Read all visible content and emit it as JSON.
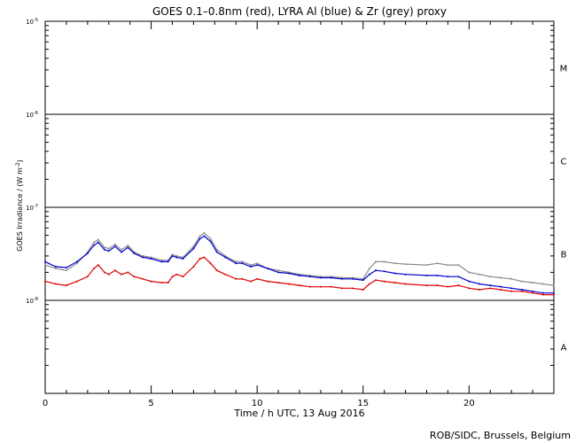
{
  "chart_data": {
    "type": "line",
    "title": "GOES 0.1–0.8nm (red), LYRA Al (blue) & Zr (grey) proxy",
    "xlabel": "Time / h UTC, 13 Aug 2016",
    "ylabel": "GOES Irradiance / (W m",
    "ylabel_sup": "-2",
    "ylabel_end": ")",
    "credit": "ROB/SIDC, Brussels, Belgium",
    "x_range": [
      0,
      24
    ],
    "x_ticks": [
      "0",
      "5",
      "10",
      "15",
      "20"
    ],
    "y_scale": "log",
    "y_range": [
      1e-08,
      0.0001
    ],
    "y_ticks": [
      {
        "base": "10",
        "exp": "-8"
      },
      {
        "base": "10",
        "exp": "-7"
      },
      {
        "base": "10",
        "exp": "-6"
      },
      {
        "base": "10",
        "exp": "-5"
      },
      {
        "base": "10",
        "exp": "-4"
      }
    ],
    "flare_classes": [
      "A",
      "B",
      "C",
      "M"
    ],
    "class_lines": [
      1e-07,
      1e-06,
      1e-05
    ],
    "colors": {
      "goes": "#e00000",
      "lyra_al": "#0000cc",
      "lyra_zr": "#8c8c8c"
    },
    "series": [
      {
        "name": "GOES 0.1–0.8nm",
        "color": "#e00000",
        "x": [
          0,
          0.5,
          1,
          1.5,
          2,
          2.3,
          2.5,
          2.8,
          3,
          3.3,
          3.6,
          3.9,
          4.2,
          4.6,
          5,
          5.5,
          5.8,
          6,
          6.2,
          6.5,
          7,
          7.3,
          7.5,
          7.8,
          8.1,
          8.5,
          9,
          9.3,
          9.7,
          10,
          10.5,
          11,
          11.5,
          12,
          12.5,
          13,
          13.5,
          14,
          14.5,
          15,
          15.3,
          15.6,
          16,
          16.5,
          17,
          18,
          18.5,
          19,
          19.5,
          20,
          20.5,
          21,
          21.5,
          22,
          22.5,
          23,
          23.5,
          24
        ],
        "y": [
          1.6e-07,
          1.5e-07,
          1.45e-07,
          1.6e-07,
          1.8e-07,
          2.2e-07,
          2.4e-07,
          2e-07,
          1.9e-07,
          2.1e-07,
          1.9e-07,
          2e-07,
          1.8e-07,
          1.7e-07,
          1.6e-07,
          1.55e-07,
          1.55e-07,
          1.8e-07,
          1.9e-07,
          1.8e-07,
          2.3e-07,
          2.8e-07,
          2.9e-07,
          2.5e-07,
          2.1e-07,
          1.9e-07,
          1.7e-07,
          1.7e-07,
          1.6e-07,
          1.7e-07,
          1.6e-07,
          1.55e-07,
          1.5e-07,
          1.45e-07,
          1.4e-07,
          1.4e-07,
          1.4e-07,
          1.35e-07,
          1.35e-07,
          1.3e-07,
          1.5e-07,
          1.65e-07,
          1.6e-07,
          1.55e-07,
          1.5e-07,
          1.45e-07,
          1.45e-07,
          1.4e-07,
          1.45e-07,
          1.35e-07,
          1.3e-07,
          1.35e-07,
          1.3e-07,
          1.25e-07,
          1.25e-07,
          1.2e-07,
          1.15e-07,
          1.15e-07
        ]
      },
      {
        "name": "LYRA Al",
        "color": "#0000cc",
        "x": [
          0,
          0.5,
          1,
          1.5,
          2,
          2.3,
          2.5,
          2.8,
          3,
          3.3,
          3.6,
          3.9,
          4.2,
          4.6,
          5,
          5.5,
          5.8,
          6,
          6.2,
          6.5,
          7,
          7.3,
          7.5,
          7.8,
          8.1,
          8.5,
          9,
          9.3,
          9.7,
          10,
          10.5,
          11,
          11.5,
          12,
          12.5,
          13,
          13.5,
          14,
          14.5,
          15,
          15.3,
          15.6,
          16,
          16.5,
          17,
          18,
          18.5,
          19,
          19.5,
          20,
          20.5,
          21,
          21.5,
          22,
          22.5,
          23,
          23.5,
          24
        ],
        "y": [
          2.6e-07,
          2.3e-07,
          2.25e-07,
          2.6e-07,
          3.2e-07,
          3.9e-07,
          4.2e-07,
          3.5e-07,
          3.4e-07,
          3.8e-07,
          3.3e-07,
          3.7e-07,
          3.2e-07,
          2.9e-07,
          2.8e-07,
          2.6e-07,
          2.6e-07,
          3e-07,
          2.9e-07,
          2.8e-07,
          3.6e-07,
          4.6e-07,
          4.9e-07,
          4.3e-07,
          3.3e-07,
          2.9e-07,
          2.5e-07,
          2.5e-07,
          2.3e-07,
          2.4e-07,
          2.2e-07,
          2e-07,
          1.95e-07,
          1.85e-07,
          1.8e-07,
          1.75e-07,
          1.75e-07,
          1.7e-07,
          1.7e-07,
          1.65e-07,
          1.9e-07,
          2.1e-07,
          2.05e-07,
          1.95e-07,
          1.9e-07,
          1.85e-07,
          1.85e-07,
          1.8e-07,
          1.8e-07,
          1.6e-07,
          1.5e-07,
          1.45e-07,
          1.4e-07,
          1.35e-07,
          1.3e-07,
          1.25e-07,
          1.2e-07,
          1.2e-07
        ]
      },
      {
        "name": "LYRA Zr",
        "color": "#8c8c8c",
        "x": [
          0,
          0.5,
          1,
          1.5,
          2,
          2.3,
          2.5,
          2.8,
          3,
          3.3,
          3.6,
          3.9,
          4.2,
          4.6,
          5,
          5.5,
          5.8,
          6,
          6.2,
          6.5,
          7,
          7.3,
          7.5,
          7.8,
          8.1,
          8.5,
          9,
          9.3,
          9.7,
          10,
          10.5,
          11,
          11.5,
          12,
          12.5,
          13,
          13.5,
          14,
          14.5,
          15,
          15.3,
          15.6,
          16,
          16.5,
          17,
          18,
          18.5,
          19,
          19.5,
          20,
          20.5,
          21,
          21.5,
          22,
          22.5,
          23,
          23.5,
          24
        ],
        "y": [
          2.4e-07,
          2.2e-07,
          2.1e-07,
          2.5e-07,
          3.3e-07,
          4.2e-07,
          4.5e-07,
          3.7e-07,
          3.6e-07,
          4e-07,
          3.5e-07,
          3.9e-07,
          3.3e-07,
          3e-07,
          2.9e-07,
          2.7e-07,
          2.7e-07,
          3.1e-07,
          3e-07,
          2.9e-07,
          3.8e-07,
          4.9e-07,
          5.3e-07,
          4.6e-07,
          3.5e-07,
          3e-07,
          2.6e-07,
          2.6e-07,
          2.4e-07,
          2.5e-07,
          2.2e-07,
          2.1e-07,
          2e-07,
          1.9e-07,
          1.85e-07,
          1.8e-07,
          1.8e-07,
          1.75e-07,
          1.75e-07,
          1.7e-07,
          2.2e-07,
          2.6e-07,
          2.6e-07,
          2.5e-07,
          2.45e-07,
          2.4e-07,
          2.5e-07,
          2.4e-07,
          2.4e-07,
          2e-07,
          1.9e-07,
          1.8e-07,
          1.75e-07,
          1.7e-07,
          1.6e-07,
          1.55e-07,
          1.5e-07,
          1.45e-07
        ]
      }
    ]
  }
}
